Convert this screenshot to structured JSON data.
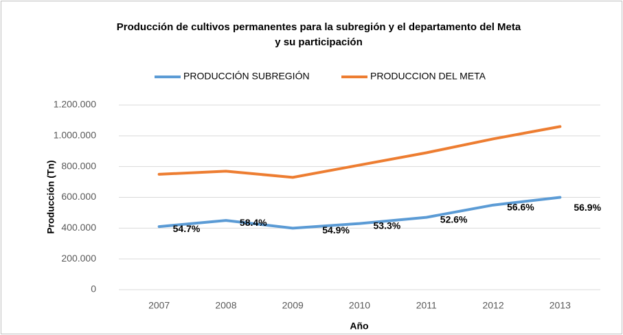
{
  "chart_data": {
    "type": "line",
    "title": [
      "Producción de cultivos permanentes para la subregión y el departamento del Meta",
      "y su participación"
    ],
    "x_label": "Año",
    "y_label": "Producción (Tn)",
    "categories": [
      "2007",
      "2008",
      "2009",
      "2010",
      "2011",
      "2012",
      "2013"
    ],
    "series": [
      {
        "name": "PRODUCCIÓN SUBREGIÓN",
        "color": "#5b9bd5",
        "values": [
          410000,
          450000,
          400000,
          430000,
          470000,
          550000,
          600000
        ],
        "annotations": [
          "54.7%",
          "58.4%",
          "54.9%",
          "53.3%",
          "52.6%",
          "56.6%",
          "56.9%"
        ]
      },
      {
        "name": "PRODUCCION DEL META",
        "color": "#ed7d31",
        "values": [
          750000,
          770000,
          730000,
          810000,
          890000,
          980000,
          1060000
        ]
      }
    ],
    "ylim": [
      0,
      1200000
    ],
    "yticks": [
      0,
      {
        "value": 200000,
        "label": "200.000"
      },
      {
        "value": 400000,
        "label": "400.000"
      },
      {
        "value": 600000,
        "label": "600.000"
      },
      {
        "value": 800000,
        "label": "800.000"
      },
      {
        "value": 1000000,
        "label": "1.000.000"
      },
      {
        "value": 1200000,
        "label": "1.200.000"
      }
    ],
    "grid": true,
    "legend": "top"
  }
}
